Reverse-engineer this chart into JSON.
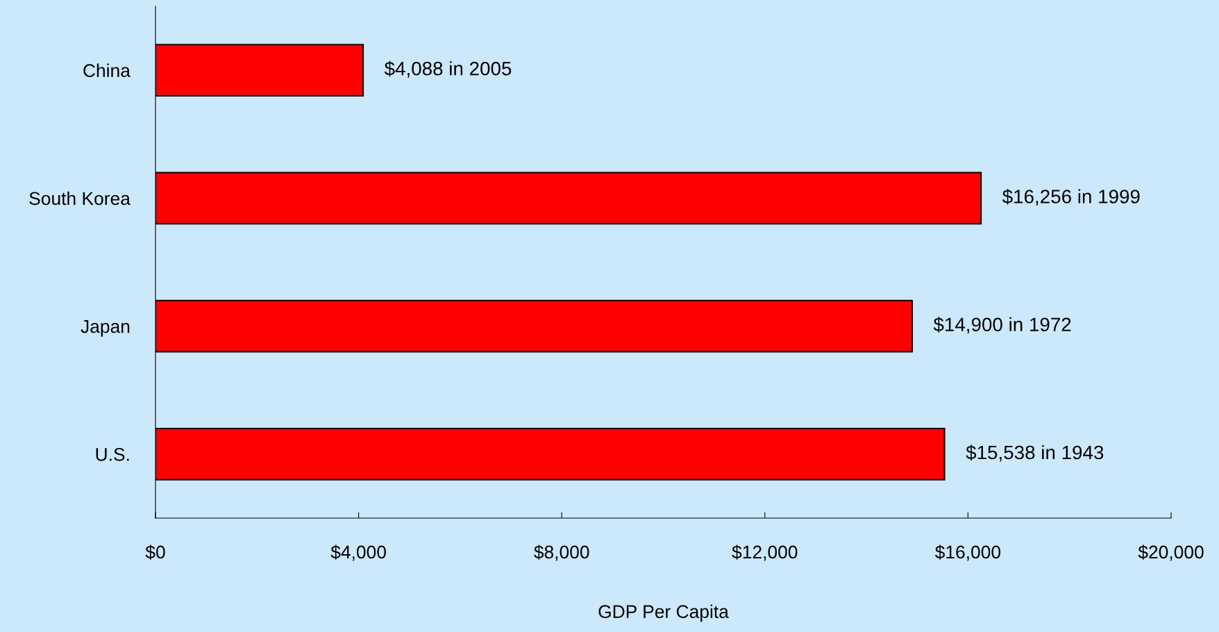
{
  "chart_data": {
    "type": "bar",
    "orientation": "horizontal",
    "xlabel": "GDP Per Capita",
    "categories": [
      "China",
      "South Korea",
      "Japan",
      "U.S."
    ],
    "values": [
      4088,
      16256,
      14900,
      15538
    ],
    "value_labels": [
      "$4,088 in 2005",
      "$16,256 in 1999",
      "$14,900 in 1972",
      "$15,538 in 1943"
    ],
    "color": "#ff0000",
    "xlim": [
      0,
      20000
    ],
    "xticks": [
      {
        "value": 0,
        "label": "$0"
      },
      {
        "value": 4000,
        "label": "$4,000"
      },
      {
        "value": 8000,
        "label": "$8,000"
      },
      {
        "value": 12000,
        "label": "$12,000"
      },
      {
        "value": 16000,
        "label": "$16,000"
      },
      {
        "value": 20000,
        "label": "$20,000"
      }
    ],
    "grid": false,
    "legend": false
  }
}
